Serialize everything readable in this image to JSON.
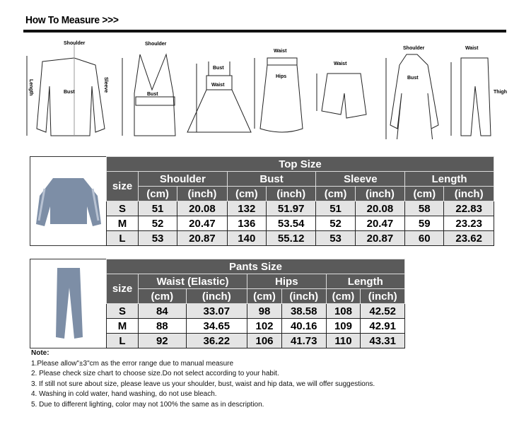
{
  "header": {
    "title": "How To Measure >>>"
  },
  "diagram_labels": {
    "shoulder": "Shoulder",
    "bust": "Bust",
    "sleeve": "Sleeve",
    "length": "Length",
    "waist": "Waist",
    "hips": "Hips",
    "thigh": "Thigh"
  },
  "top_table": {
    "title": "Top Size",
    "size_label": "size",
    "groups": [
      "Shoulder",
      "Bust",
      "Sleeve",
      "Length"
    ],
    "units": [
      "(cm)",
      "(inch)"
    ],
    "rows": [
      [
        "S",
        "51",
        "20.08",
        "132",
        "51.97",
        "51",
        "20.08",
        "58",
        "22.83"
      ],
      [
        "M",
        "52",
        "20.47",
        "136",
        "53.54",
        "52",
        "20.47",
        "59",
        "23.23"
      ],
      [
        "L",
        "53",
        "20.87",
        "140",
        "55.12",
        "53",
        "20.87",
        "60",
        "23.62"
      ]
    ]
  },
  "pants_table": {
    "title": "Pants Size",
    "size_label": "size",
    "groups": [
      "Waist  (Elastic)",
      "Hips",
      "Length"
    ],
    "units": [
      "(cm)",
      "(inch)"
    ],
    "rows": [
      [
        "S",
        "84",
        "33.07",
        "98",
        "38.58",
        "108",
        "42.52"
      ],
      [
        "M",
        "88",
        "34.65",
        "102",
        "40.16",
        "109",
        "42.91"
      ],
      [
        "L",
        "92",
        "36.22",
        "106",
        "41.73",
        "110",
        "43.31"
      ]
    ]
  },
  "colors": {
    "header_bg": "#5a5a5a",
    "garment": "#7d8ea6"
  },
  "notes": {
    "heading": "Note:",
    "items": [
      "1.Please allow\"±3\"cm as the error range due to manual measure",
      "2. Please check size chart to choose size.Do not select according to your habit.",
      "3. If still not sure about size, please leave us your shoulder, bust, waist and hip data, we will offer suggestions.",
      "4. Washing in cold water, hand washing, do not use bleach.",
      "5. Due to different lighting, color may not 100% the same as in description."
    ]
  }
}
